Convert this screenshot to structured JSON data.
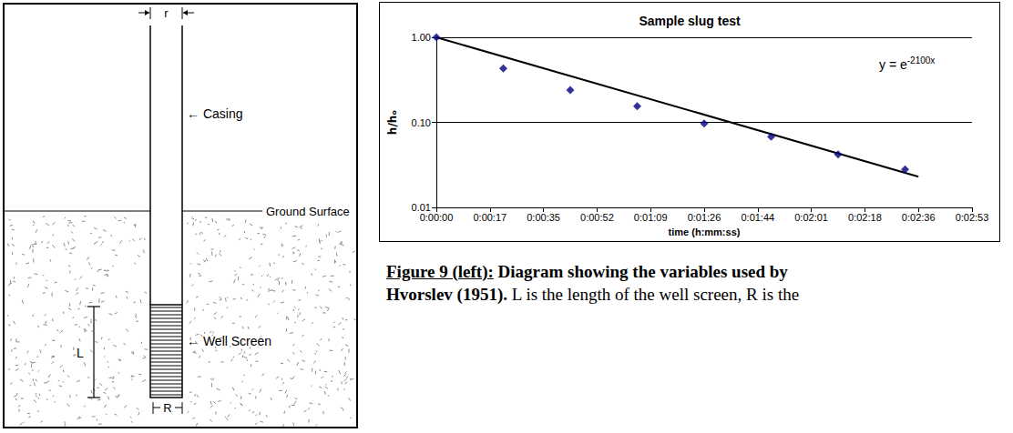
{
  "chart_data": {
    "type": "scatter",
    "title": "Sample slug test",
    "xlabel": "time (h:mm:ss)",
    "ylabel": "h/hₒ",
    "log": "y",
    "grid": true,
    "xlim": [
      0,
      0.002
    ],
    "xticks": [
      {
        "value": 0,
        "label": "0:00:00"
      },
      {
        "value": 0.0002,
        "label": "0:00:17"
      },
      {
        "value": 0.0004,
        "label": "0:00:35"
      },
      {
        "value": 0.0006,
        "label": "0:00:52"
      },
      {
        "value": 0.0008,
        "label": "0:01:09"
      },
      {
        "value": 0.001,
        "label": "0:01:26"
      },
      {
        "value": 0.0012,
        "label": "0:01:44"
      },
      {
        "value": 0.0014,
        "label": "0:02:01"
      },
      {
        "value": 0.0016,
        "label": "0:02:18"
      },
      {
        "value": 0.0018,
        "label": "0:02:36"
      },
      {
        "value": 0.002,
        "label": "0:02:53"
      }
    ],
    "ylim": [
      0.01,
      1
    ],
    "yticks": [
      0.01,
      {
        "value": 0.1,
        "label": "0.10"
      },
      {
        "value": 1,
        "label": "1.00"
      }
    ],
    "series": [
      {
        "type": "scatter",
        "color": "#000080",
        "marker": "diamond",
        "x": [
          0,
          0.00025,
          0.0005,
          0.00075,
          0.001,
          0.00125,
          0.0015,
          0.00175
        ],
        "values": [
          1.0,
          0.43,
          0.24,
          0.155,
          0.097,
          0.068,
          0.042,
          0.028
        ]
      },
      {
        "type": "line",
        "color": "#000000",
        "line_style": "solid",
        "x": [
          0,
          0.0018
        ],
        "values": [
          1.0,
          0.023
        ]
      }
    ],
    "annotations": [
      {
        "text": "y = e",
        "superscript": "-2100x"
      }
    ]
  },
  "diagram": {
    "r": "r",
    "casing": "← Casing",
    "ground": "Ground Surface",
    "screen": "← Well Screen",
    "L": "L",
    "R": "R"
  },
  "caption": {
    "lines": [
      [
        {
          "text": "Figure 9 (left):",
          "bold": true,
          "underline": true
        },
        {
          "text": " Diagram showing the variables used by",
          "bold": true,
          "underline": false
        }
      ],
      [
        {
          "text": "Hvorslev (1951).",
          "bold": true,
          "underline": false
        },
        {
          "text": " L is the length of the well screen, R is the",
          "bold": false,
          "underline": false
        }
      ]
    ]
  }
}
